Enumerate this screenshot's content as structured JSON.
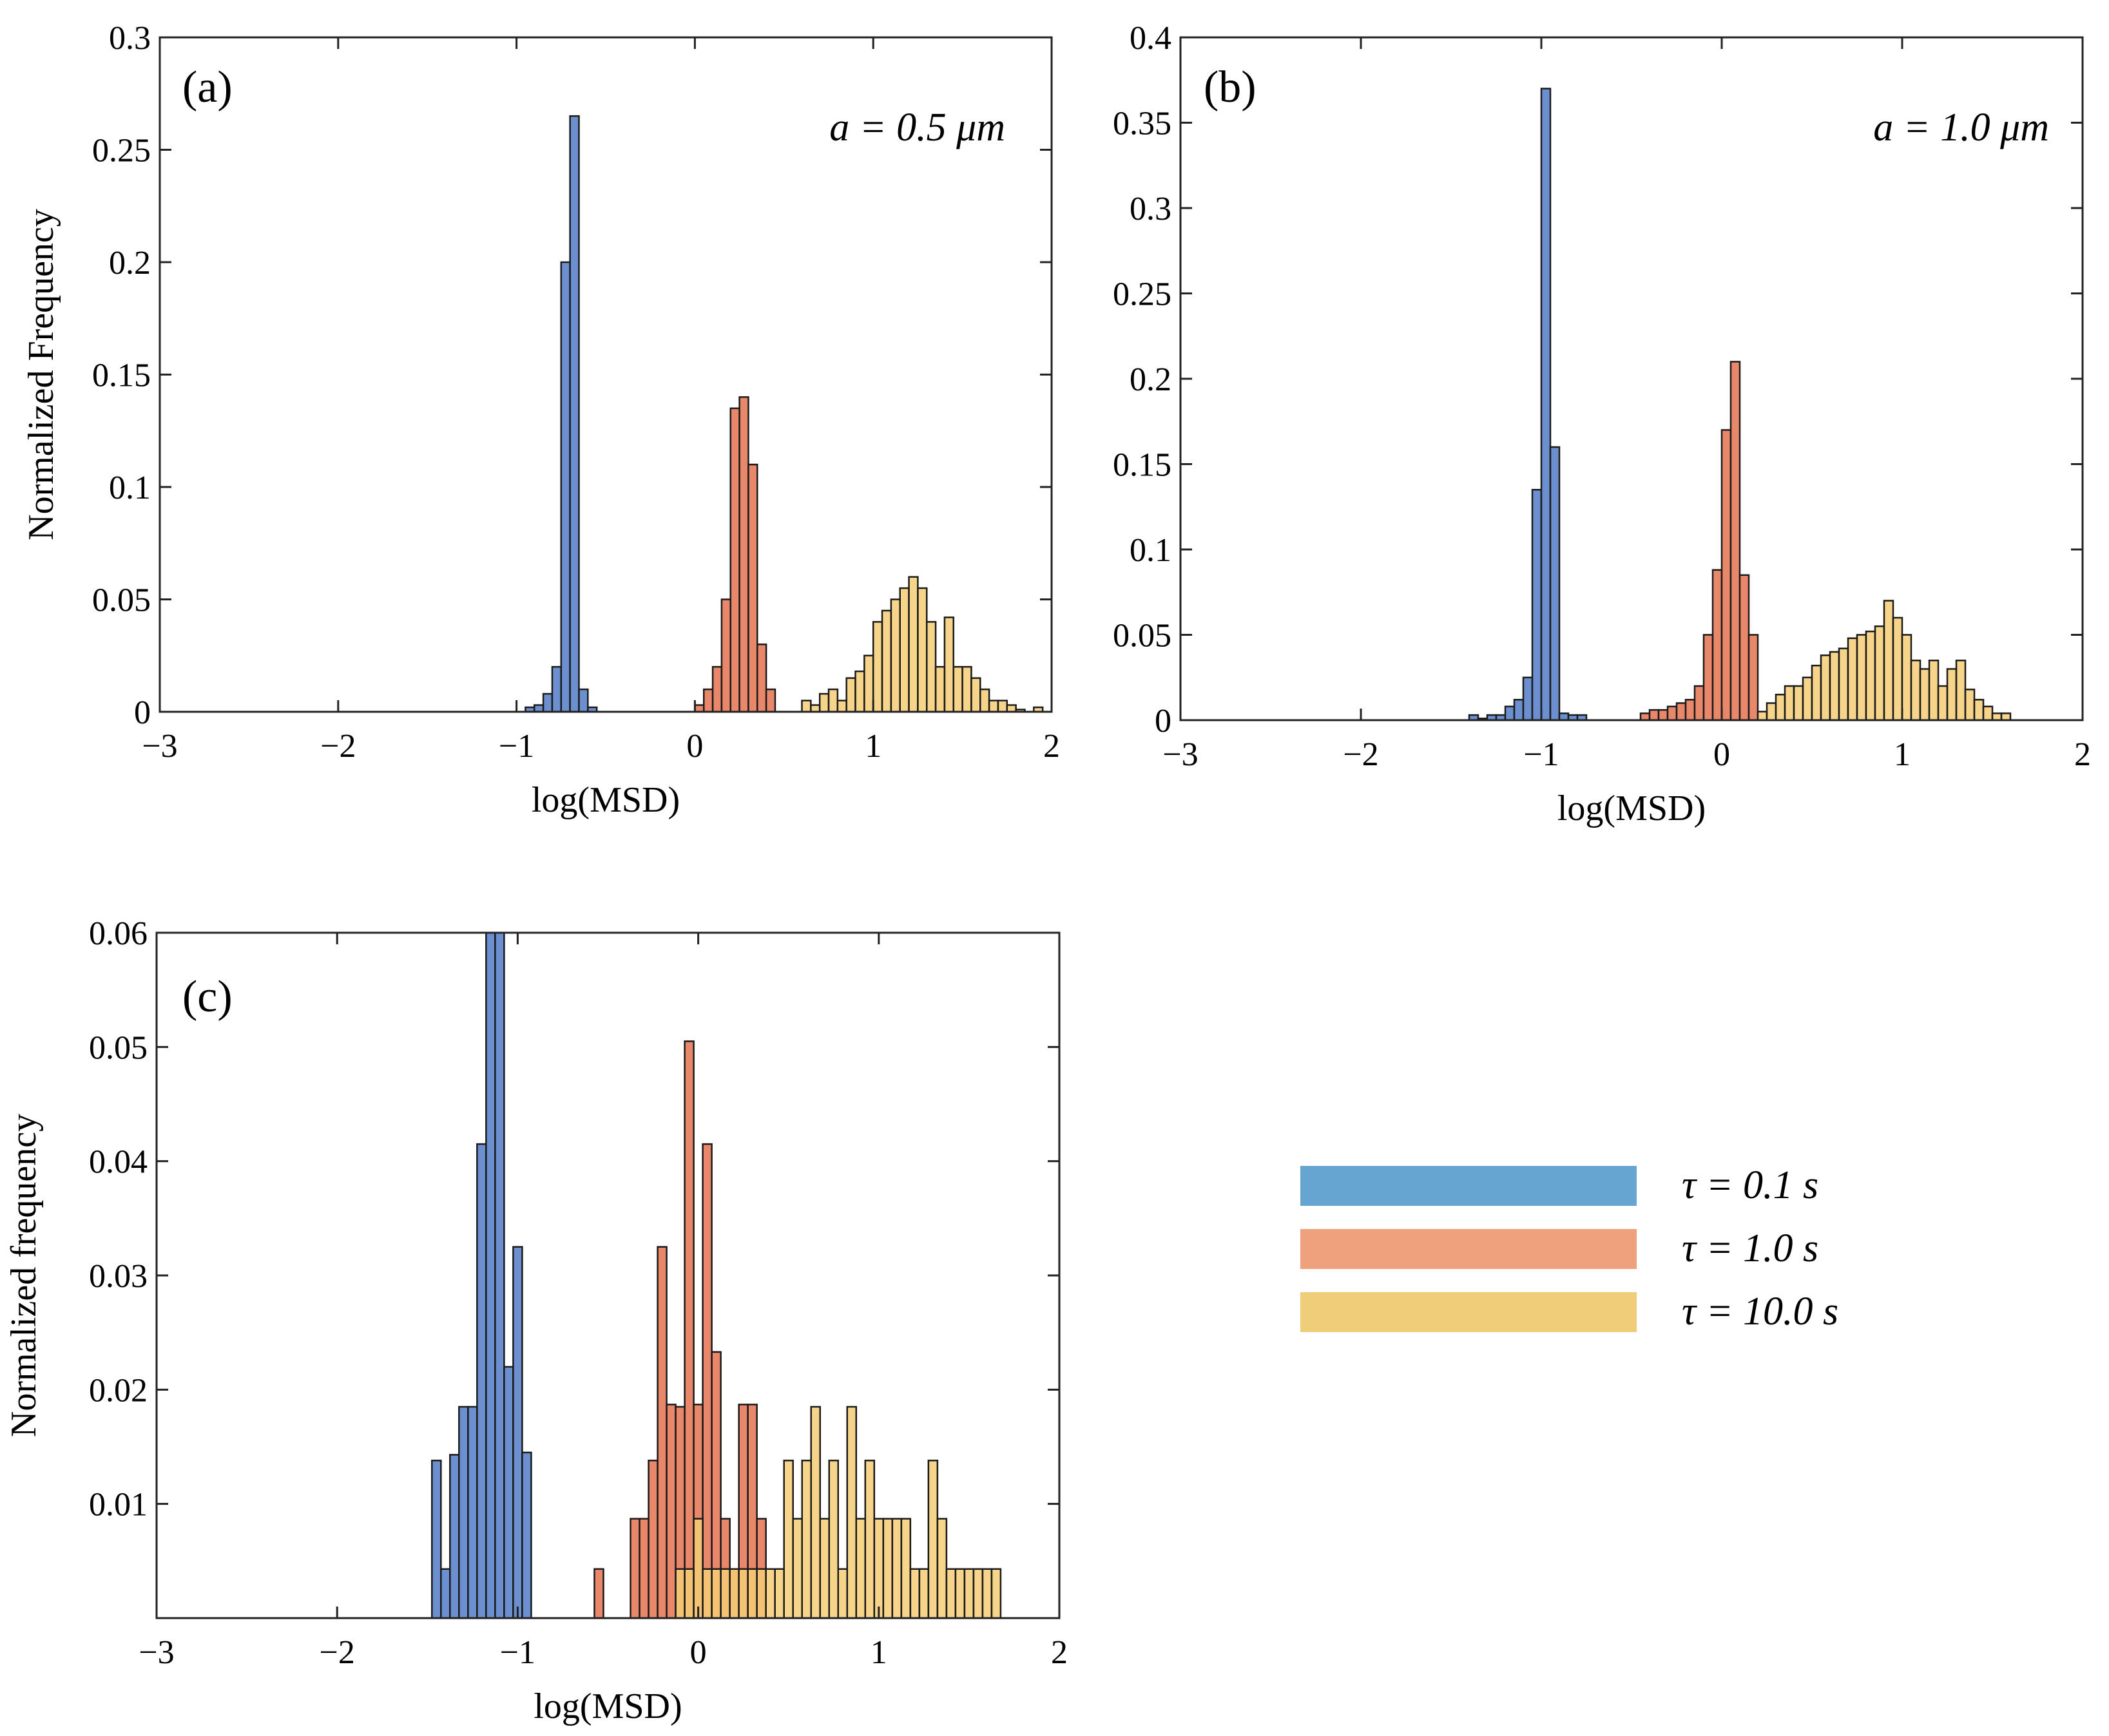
{
  "legend": [
    {
      "label": "τ = 0.1 s",
      "color": "#66a5d2"
    },
    {
      "label": "τ = 1.0 s",
      "color": "#efa07c"
    },
    {
      "label": "τ = 10.0 s",
      "color": "#f0cd78"
    }
  ],
  "chart_data": [
    {
      "type": "bar",
      "panel_label": "(a)",
      "annotation": "a = 0.5 μm",
      "xlabel": "log(MSD)",
      "ylabel": "Normalized Frequency",
      "xlim": [
        -3,
        2
      ],
      "ylim": [
        0,
        0.3
      ],
      "xticks": [
        -3,
        -2,
        -1,
        0,
        1,
        2
      ],
      "yticks": [
        0,
        0.05,
        0.1,
        0.15,
        0.2,
        0.25,
        0.3
      ],
      "ytick_labels": [
        "0",
        "0.05",
        "0.1",
        "0.15",
        "0.2",
        "0.25",
        "0.3"
      ],
      "bin_width": 0.05,
      "series": [
        {
          "name": "τ = 0.1 s",
          "color": "#6b8fcf",
          "x": [
            -0.95,
            -0.9,
            -0.85,
            -0.8,
            -0.75,
            -0.7,
            -0.65,
            -0.6
          ],
          "values": [
            0.002,
            0.003,
            0.008,
            0.02,
            0.2,
            0.265,
            0.01,
            0.002
          ]
        },
        {
          "name": "τ = 1.0 s",
          "color": "#e8876a",
          "x": [
            0,
            0.05,
            0.1,
            0.15,
            0.2,
            0.25,
            0.3,
            0.35,
            0.4
          ],
          "values": [
            0.003,
            0.01,
            0.02,
            0.05,
            0.135,
            0.14,
            0.11,
            0.03,
            0.01
          ]
        },
        {
          "name": "τ = 10.0 s",
          "color": "#f5cd74",
          "x": [
            0.6,
            0.65,
            0.7,
            0.75,
            0.8,
            0.85,
            0.9,
            0.95,
            1,
            1.05,
            1.1,
            1.15,
            1.2,
            1.25,
            1.3,
            1.35,
            1.4,
            1.45,
            1.5,
            1.55,
            1.6,
            1.65,
            1.7,
            1.75,
            1.8,
            1.9
          ],
          "values": [
            0.005,
            0.003,
            0.008,
            0.01,
            0.005,
            0.015,
            0.018,
            0.025,
            0.04,
            0.045,
            0.05,
            0.055,
            0.06,
            0.055,
            0.04,
            0.02,
            0.042,
            0.02,
            0.02,
            0.015,
            0.01,
            0.005,
            0.005,
            0.003,
            0.001,
            0.002
          ]
        }
      ]
    },
    {
      "type": "bar",
      "panel_label": "(b)",
      "annotation": "a = 1.0 μm",
      "xlabel": "log(MSD)",
      "ylabel": "",
      "xlim": [
        -3,
        2
      ],
      "ylim": [
        0,
        0.4
      ],
      "xticks": [
        -3,
        -2,
        -1,
        0,
        1,
        2
      ],
      "yticks": [
        0,
        0.05,
        0.1,
        0.15,
        0.2,
        0.25,
        0.3,
        0.35,
        0.4
      ],
      "ytick_labels": [
        "0",
        "0.05",
        "0.1",
        "0.15",
        "0.2",
        "0.25",
        "0.3",
        "0.35",
        "0.4"
      ],
      "bin_width": 0.05,
      "series": [
        {
          "name": "τ = 0.1 s",
          "color": "#6b8fcf",
          "x": [
            -1.4,
            -1.35,
            -1.3,
            -1.25,
            -1.2,
            -1.15,
            -1.1,
            -1.05,
            -1,
            -0.95,
            -0.9,
            -0.85,
            -0.8
          ],
          "values": [
            0.003,
            0.001,
            0.003,
            0.003,
            0.008,
            0.012,
            0.025,
            0.135,
            0.37,
            0.16,
            0.004,
            0.003,
            0.003
          ]
        },
        {
          "name": "τ = 1.0 s",
          "color": "#e8876a",
          "x": [
            -0.45,
            -0.4,
            -0.35,
            -0.3,
            -0.25,
            -0.2,
            -0.15,
            -0.1,
            -0.05,
            0,
            0.05,
            0.1,
            0.15
          ],
          "values": [
            0.004,
            0.006,
            0.006,
            0.008,
            0.01,
            0.012,
            0.02,
            0.05,
            0.088,
            0.17,
            0.21,
            0.085,
            0.05
          ]
        },
        {
          "name": "τ = 10.0 s",
          "color": "#f5cd74",
          "x": [
            0.2,
            0.25,
            0.3,
            0.35,
            0.4,
            0.45,
            0.5,
            0.55,
            0.6,
            0.65,
            0.7,
            0.75,
            0.8,
            0.85,
            0.9,
            0.95,
            1,
            1.05,
            1.1,
            1.15,
            1.2,
            1.25,
            1.3,
            1.35,
            1.4,
            1.45,
            1.5,
            1.55
          ],
          "values": [
            0.005,
            0.01,
            0.015,
            0.02,
            0.02,
            0.025,
            0.032,
            0.038,
            0.04,
            0.042,
            0.048,
            0.05,
            0.052,
            0.055,
            0.07,
            0.06,
            0.05,
            0.035,
            0.03,
            0.035,
            0.02,
            0.03,
            0.035,
            0.018,
            0.012,
            0.008,
            0.004,
            0.004
          ]
        }
      ]
    },
    {
      "type": "bar",
      "panel_label": "(c)",
      "annotation": "",
      "xlabel": "log(MSD)",
      "ylabel": "Normalized frequency",
      "xlim": [
        -3,
        2
      ],
      "ylim": [
        0,
        0.06
      ],
      "xticks": [
        -3,
        -2,
        -1,
        0,
        1,
        2
      ],
      "yticks": [
        0.01,
        0.02,
        0.03,
        0.04,
        0.05,
        0.06
      ],
      "ytick_labels": [
        "0.01",
        "0.02",
        "0.03",
        "0.04",
        "0.05",
        "0.06"
      ],
      "bin_width": 0.05,
      "series": [
        {
          "name": "τ = 0.1 s",
          "color": "#6b8fcf",
          "x": [
            -1.475,
            -1.425,
            -1.375,
            -1.325,
            -1.275,
            -1.225,
            -1.175,
            -1.125,
            -1.075,
            -1.025,
            -0.975
          ],
          "values": [
            0.0138,
            0.0043,
            0.0143,
            0.0185,
            0.0185,
            0.0415,
            0.0615,
            0.0615,
            0.022,
            0.0325,
            0.0145
          ]
        },
        {
          "name": "τ = 1.0 s",
          "color": "#e8876a",
          "x": [
            -0.575,
            -0.375,
            -0.325,
            -0.275,
            -0.225,
            -0.175,
            -0.125,
            -0.075,
            -0.025,
            0.025,
            0.075,
            0.125,
            0.175,
            0.225,
            0.275,
            0.325
          ],
          "values": [
            0.0043,
            0.0087,
            0.0087,
            0.0138,
            0.0325,
            0.0187,
            0.0185,
            0.0505,
            0.0187,
            0.0415,
            0.0233,
            0.0087,
            0.0043,
            0.0187,
            0.0187,
            0.0087
          ]
        },
        {
          "name": "τ = 10.0 s",
          "color": "#f5cd74",
          "x": [
            -0.125,
            -0.075,
            -0.025,
            0.025,
            0.075,
            0.125,
            0.175,
            0.225,
            0.275,
            0.325,
            0.375,
            0.425,
            0.475,
            0.525,
            0.575,
            0.625,
            0.675,
            0.725,
            0.775,
            0.825,
            0.875,
            0.925,
            0.975,
            1.025,
            1.075,
            1.125,
            1.175,
            1.225,
            1.275,
            1.325,
            1.375,
            1.425,
            1.475,
            1.525,
            1.575,
            1.625
          ],
          "values": [
            0.0043,
            0.0043,
            0.0087,
            0.0043,
            0.0043,
            0.0043,
            0.0043,
            0.0043,
            0.0043,
            0.0043,
            0.0043,
            0.0043,
            0.0138,
            0.0087,
            0.0138,
            0.0185,
            0.0087,
            0.0138,
            0.0043,
            0.0185,
            0.0087,
            0.0138,
            0.0087,
            0.0087,
            0.0087,
            0.0087,
            0.0043,
            0.0043,
            0.0138,
            0.0087,
            0.0043,
            0.0043,
            0.0043,
            0.0043,
            0.0043,
            0.0043
          ]
        }
      ]
    }
  ]
}
